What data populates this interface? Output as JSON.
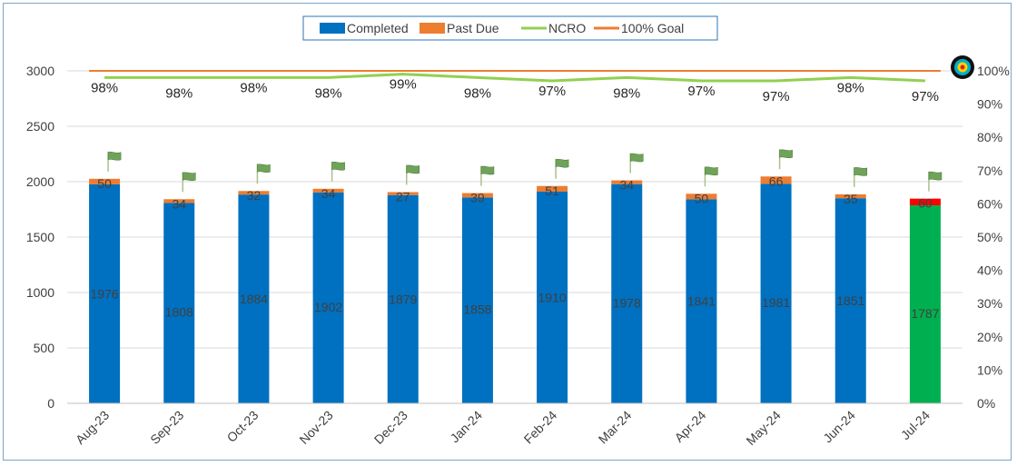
{
  "chart_data": {
    "type": "bar",
    "categories": [
      "Aug-23",
      "Sep-23",
      "Oct-23",
      "Nov-23",
      "Dec-23",
      "Jan-24",
      "Feb-24",
      "Mar-24",
      "Apr-24",
      "May-24",
      "Jun-24",
      "Jul-24"
    ],
    "series": [
      {
        "name": "Completed",
        "kind": "stacked-bar",
        "axis": "left",
        "color": "#0070c0",
        "values": [
          1976,
          1808,
          1884,
          1902,
          1879,
          1858,
          1910,
          1978,
          1841,
          1981,
          1851,
          1787
        ]
      },
      {
        "name": "Past Due",
        "kind": "stacked-bar",
        "axis": "left",
        "color": "#ed7d31",
        "values": [
          50,
          34,
          32,
          34,
          27,
          39,
          51,
          34,
          50,
          66,
          35,
          60
        ]
      },
      {
        "name": "NCRO",
        "kind": "line",
        "axis": "right",
        "color": "#92d050",
        "values": [
          98,
          98,
          98,
          98,
          99,
          98,
          97,
          98,
          97,
          97,
          98,
          97
        ],
        "labels": [
          "98%",
          "98%",
          "98%",
          "98%",
          "99%",
          "98%",
          "97%",
          "98%",
          "97%",
          "97%",
          "98%",
          "97%"
        ]
      },
      {
        "name": "100% Goal",
        "kind": "line",
        "axis": "right",
        "color": "#ed7d31",
        "values": [
          100,
          100,
          100,
          100,
          100,
          100,
          100,
          100,
          100,
          100,
          100,
          100
        ]
      }
    ],
    "highlight": {
      "category": "Jul-24",
      "completed_color": "#00b050",
      "past_due_color": "#ff0000"
    },
    "y_left": {
      "min": 0,
      "max": 3000,
      "ticks": [
        "0",
        "500",
        "1000",
        "1500",
        "2000",
        "2500",
        "3000"
      ]
    },
    "y_right": {
      "min": 0,
      "max": 100,
      "ticks": [
        "0%",
        "10%",
        "20%",
        "30%",
        "40%",
        "50%",
        "60%",
        "70%",
        "80%",
        "90%",
        "100%"
      ]
    },
    "legend_position": "top-center",
    "grid": true,
    "markers": {
      "flag_icon": "flag-icon",
      "target_icon": "target-icon"
    }
  }
}
